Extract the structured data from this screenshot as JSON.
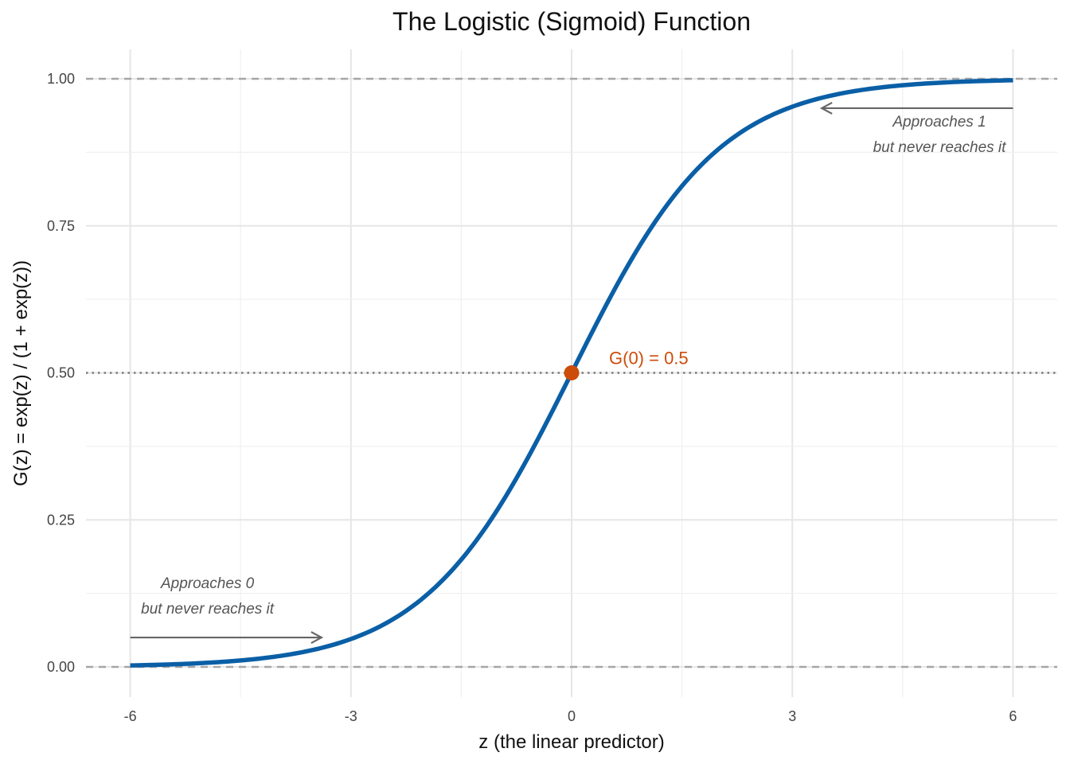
{
  "chart_data": {
    "type": "line",
    "title": "The Logistic (Sigmoid) Function",
    "xlabel": "z (the linear predictor)",
    "ylabel": "G(z) = exp(z) / (1 + exp(z))",
    "xlim": [
      -6,
      6
    ],
    "ylim": [
      0,
      1
    ],
    "x_ticks": [
      -6,
      -3,
      0,
      3,
      6
    ],
    "x_tick_labels": [
      "-6",
      "-3",
      "0",
      "3",
      "6"
    ],
    "y_ticks": [
      0,
      0.25,
      0.5,
      0.75,
      1
    ],
    "y_tick_labels": [
      "0.00",
      "0.25",
      "0.50",
      "0.75",
      "1.00"
    ],
    "grid": true,
    "series": [
      {
        "function": "exp(z) / (1 + exp(z))",
        "x": [
          -6,
          -5,
          -4,
          -3,
          -2,
          -1,
          0,
          1,
          2,
          3,
          4,
          5,
          6
        ],
        "values": [
          0.0025,
          0.0067,
          0.018,
          0.047,
          0.119,
          0.269,
          0.5,
          0.731,
          0.881,
          0.953,
          0.982,
          0.9933,
          0.9975
        ],
        "color": "#0a5fa6"
      }
    ],
    "reference_lines": [
      {
        "axis": "y",
        "value": 1,
        "style": "dashed",
        "color": "#a6a6a6"
      },
      {
        "axis": "y",
        "value": 0,
        "style": "dashed",
        "color": "#a6a6a6"
      },
      {
        "axis": "y",
        "value": 0.5,
        "style": "dotted",
        "color": "#7a7a7a"
      }
    ],
    "highlight_point": {
      "x": 0,
      "y": 0.5,
      "label": "G(0) = 0.5",
      "color": "#cc4c0a"
    },
    "annotations": [
      {
        "lines": [
          "Approaches 1",
          "but never reaches it"
        ],
        "arrow": {
          "from": [
            6,
            0.95
          ],
          "to": [
            3.4,
            0.95
          ]
        },
        "text_anchor": [
          5.0,
          0.9
        ],
        "color": "#666666"
      },
      {
        "lines": [
          "Approaches 0",
          "but never reaches it"
        ],
        "arrow": {
          "from": [
            -6,
            0.05
          ],
          "to": [
            -3.4,
            0.05
          ]
        },
        "text_anchor": [
          -4.95,
          0.115
        ],
        "color": "#666666"
      }
    ]
  }
}
